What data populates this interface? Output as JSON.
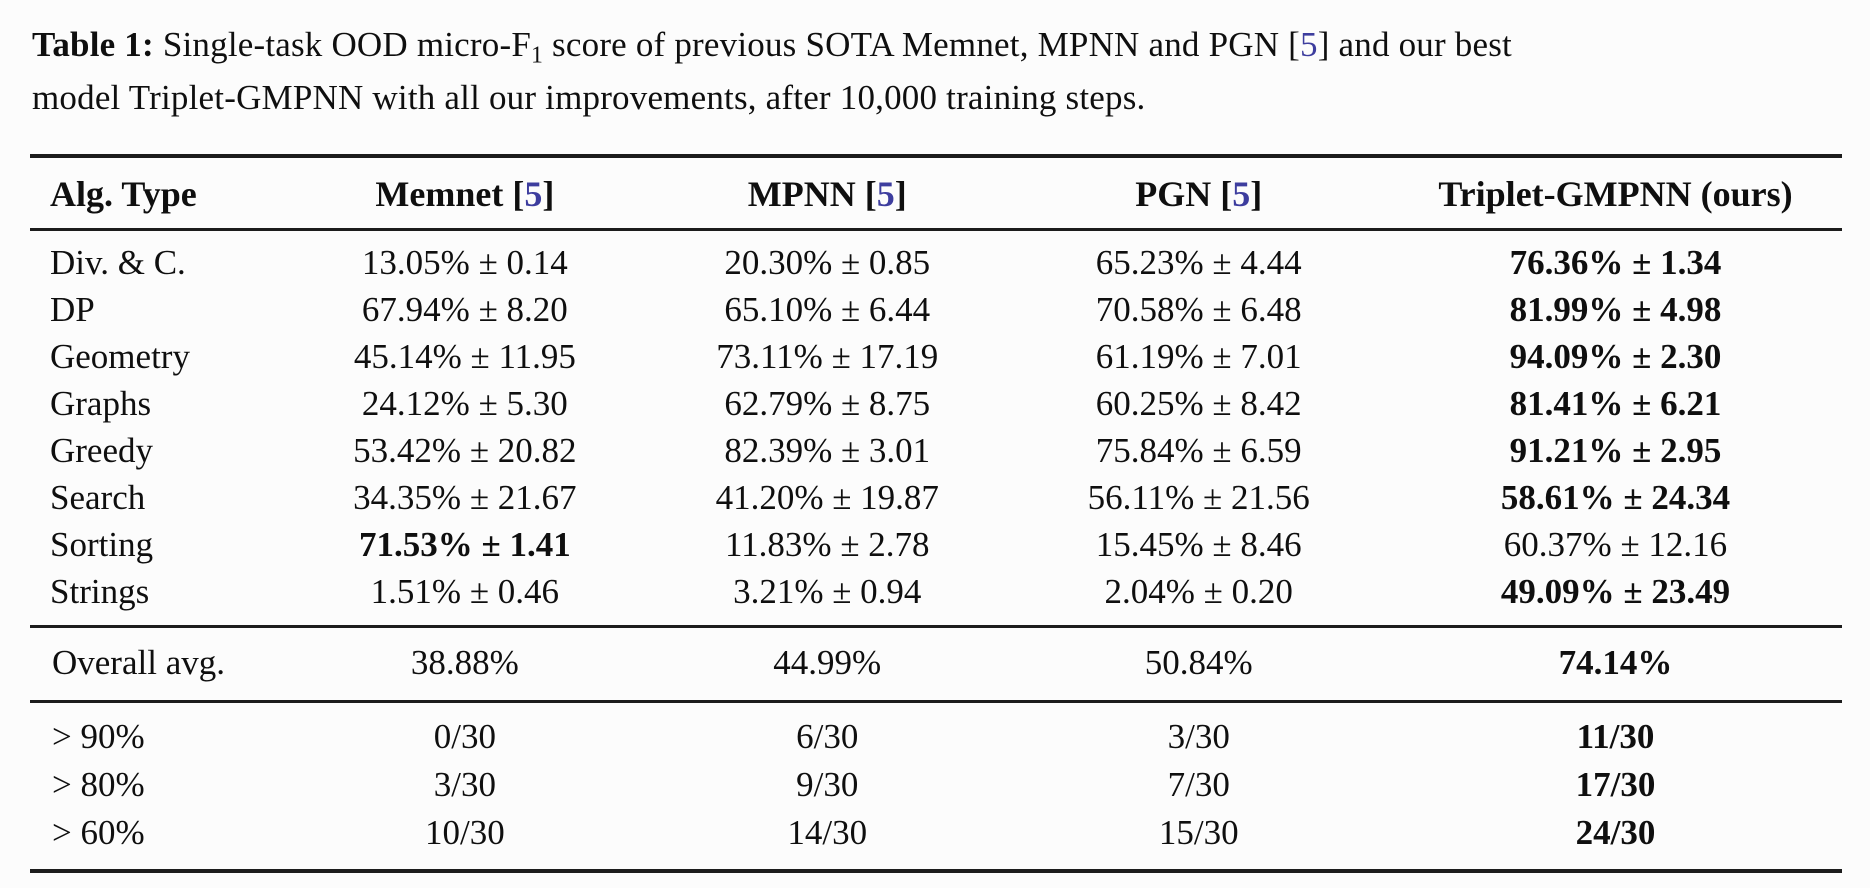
{
  "caption": {
    "label": "Table 1:",
    "text_a": " Single-task OOD micro-F",
    "subscript": "1",
    "text_b": " score of previous SOTA Memnet, MPNN and PGN ",
    "cite_open": "[",
    "cite_num": "5",
    "cite_close": "]",
    "text_c": " and our best model Triplet-GMPNN with all our improvements, after 10,000 training steps."
  },
  "colors": {
    "citation_blue": "#3d3d9e",
    "text": "#0f0f0f",
    "background": "#fcfcfc",
    "rule": "#1c1c1c"
  },
  "table": {
    "columns": [
      {
        "label": "Alg. Type"
      },
      {
        "label": "Memnet ",
        "cite_open": "[",
        "cite_num": "5",
        "cite_close": "]"
      },
      {
        "label": "MPNN ",
        "cite_open": "[",
        "cite_num": "5",
        "cite_close": "]"
      },
      {
        "label": "PGN ",
        "cite_open": "[",
        "cite_num": "5",
        "cite_close": "]"
      },
      {
        "label": "Triplet-GMPNN (ours)"
      }
    ],
    "rows": [
      {
        "alg": "Div. & C.",
        "memnet": "13.05% ± 0.14",
        "mpnn": "20.30% ± 0.85",
        "pgn": "65.23% ± 4.44",
        "triplet": "76.36% ± 1.34"
      },
      {
        "alg": "DP",
        "memnet": "67.94% ± 8.20",
        "mpnn": "65.10% ± 6.44",
        "pgn": "70.58% ± 6.48",
        "triplet": "81.99% ± 4.98"
      },
      {
        "alg": "Geometry",
        "memnet": "45.14% ± 11.95",
        "mpnn": "73.11% ± 17.19",
        "pgn": "61.19% ± 7.01",
        "triplet": "94.09% ± 2.30"
      },
      {
        "alg": "Graphs",
        "memnet": "24.12% ± 5.30",
        "mpnn": "62.79% ± 8.75",
        "pgn": "60.25% ± 8.42",
        "triplet": "81.41% ± 6.21"
      },
      {
        "alg": "Greedy",
        "memnet": "53.42% ± 20.82",
        "mpnn": "82.39% ± 3.01",
        "pgn": "75.84% ± 6.59",
        "triplet": "91.21% ± 2.95"
      },
      {
        "alg": "Search",
        "memnet": "34.35% ± 21.67",
        "mpnn": "41.20% ± 19.87",
        "pgn": "56.11% ± 21.56",
        "triplet": "58.61% ± 24.34"
      },
      {
        "alg": "Sorting",
        "memnet": "71.53% ± 1.41",
        "mpnn": "11.83% ± 2.78",
        "pgn": "15.45% ± 8.46",
        "triplet": "60.37% ± 12.16"
      },
      {
        "alg": "Strings",
        "memnet": "1.51% ± 0.46",
        "mpnn": "3.21% ± 0.94",
        "pgn": "2.04% ± 0.20",
        "triplet": "49.09% ± 23.49"
      }
    ],
    "overall": {
      "label": "Overall avg.",
      "memnet": "38.88%",
      "mpnn": "44.99%",
      "pgn": "50.84%",
      "triplet": "74.14%"
    },
    "thresholds": [
      {
        "label": "> 90%",
        "memnet": "0/30",
        "mpnn": "6/30",
        "pgn": "3/30",
        "triplet": "11/30"
      },
      {
        "label": "> 80%",
        "memnet": "3/30",
        "mpnn": "9/30",
        "pgn": "7/30",
        "triplet": "17/30"
      },
      {
        "label": "> 60%",
        "memnet": "10/30",
        "mpnn": "14/30",
        "pgn": "15/30",
        "triplet": "24/30"
      }
    ]
  }
}
